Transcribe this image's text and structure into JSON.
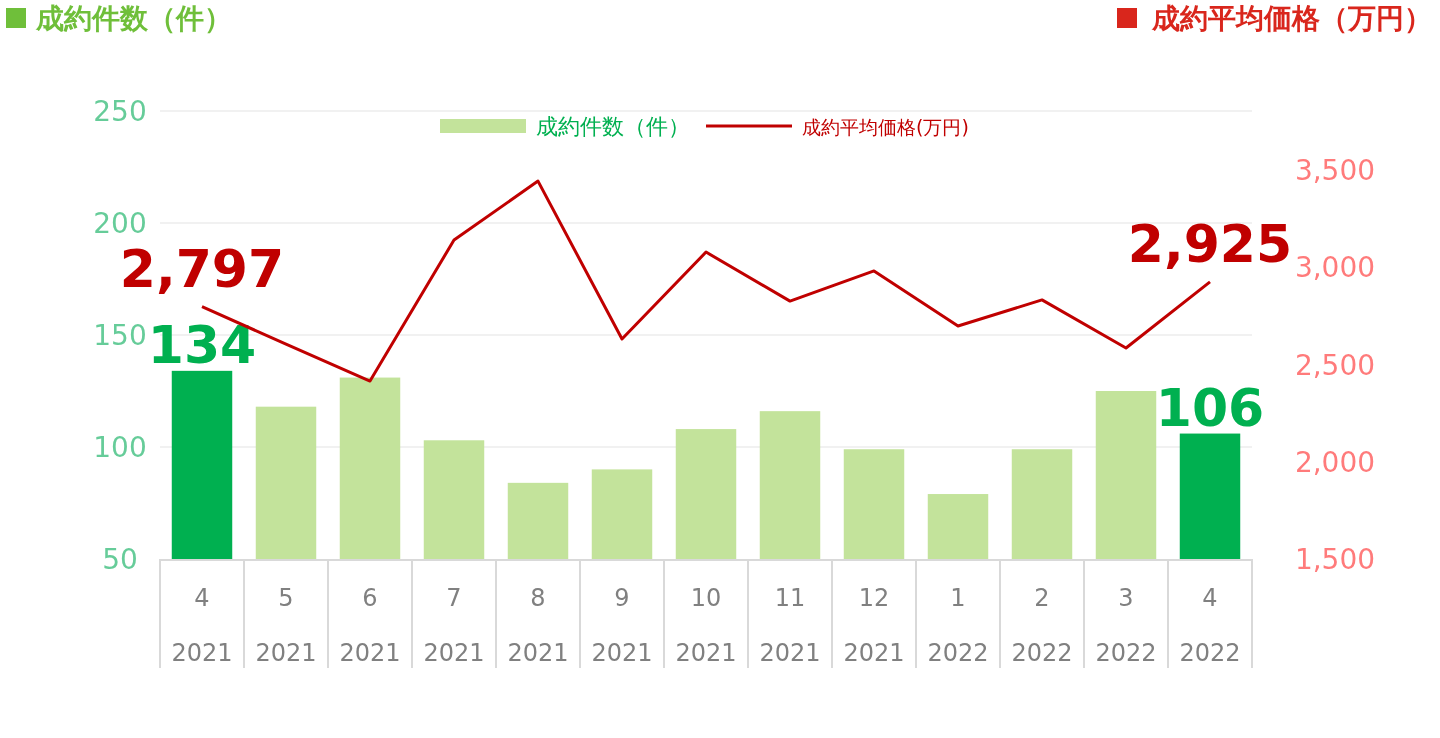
{
  "chart_data": {
    "type": "bar",
    "ylabel": "成約件数（件）",
    "y2label": "成約平均価格（万円）",
    "categories": [
      "4 2021",
      "5 2021",
      "6 2021",
      "7 2021",
      "8 2021",
      "9 2021",
      "10 2021",
      "11 2021",
      "12 2021",
      "1 2022",
      "2 2022",
      "3 2022",
      "4 2022"
    ],
    "series": [
      {
        "name": "成約件数（件）",
        "color": "#c3e39b",
        "colors": [
          "#00b050",
          "#c3e39b",
          "#c3e39b",
          "#c3e39b",
          "#c3e39b",
          "#c3e39b",
          "#c3e39b",
          "#c3e39b",
          "#c3e39b",
          "#c3e39b",
          "#c3e39b",
          "#c3e39b",
          "#00b050"
        ],
        "values": [
          134,
          118,
          131,
          103,
          84,
          90,
          108,
          116,
          99,
          79,
          99,
          125,
          106
        ],
        "value_labels": [
          "134",
          null,
          null,
          null,
          null,
          null,
          null,
          null,
          null,
          null,
          null,
          null,
          "106"
        ]
      },
      {
        "name": "成約平均価格(万円)",
        "type": "line",
        "axis": "y2",
        "color": "#c00000",
        "values": [
          2797,
          2605,
          2415,
          3140,
          3443,
          2631,
          3078,
          2826,
          2981,
          2698,
          2832,
          2585,
          2925
        ],
        "value_labels": [
          "2,797",
          null,
          null,
          null,
          null,
          null,
          null,
          null,
          null,
          null,
          null,
          null,
          "2,925"
        ]
      }
    ],
    "ylim": [
      50,
      250
    ],
    "yticks": [
      50,
      100,
      150,
      200,
      250
    ],
    "y2lim": [
      1500,
      3500
    ],
    "y2ticks": [
      {
        "value": 1500,
        "label": "1,500"
      },
      {
        "value": 2000,
        "label": "2,000"
      },
      {
        "value": 2500,
        "label": "2,500"
      },
      {
        "value": 3000,
        "label": "3,000"
      },
      {
        "value": 3500,
        "label": "3,500"
      }
    ],
    "grid": "y",
    "legend": "top",
    "marker": "none",
    "line_style": "solid"
  }
}
